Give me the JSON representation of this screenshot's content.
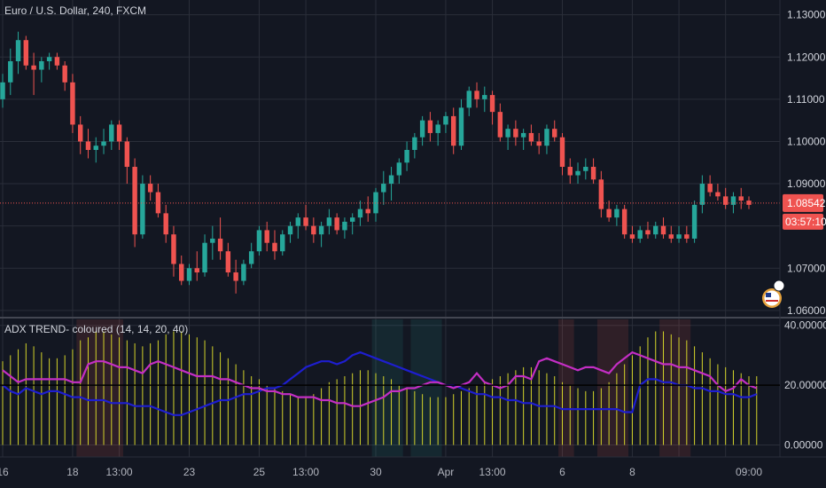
{
  "main_title": "Euro / U.S. Dollar, 240, FXCM",
  "indicator_title": "ADX TREND- coloured (14, 14, 20, 40)",
  "price_axis_labels": [
    "1.13000",
    "1.12000",
    "1.11000",
    "1.10000",
    "1.09000",
    "1.07000",
    "1.06000"
  ],
  "last_price_label": "1.08542",
  "countdown_label": "03:57:10",
  "indicator_axis_labels": [
    "40.00000",
    "20.00000",
    "0.00000"
  ],
  "time_labels": [
    "16",
    "18",
    "13:00",
    "23",
    "25",
    "13:00",
    "30",
    "Apr",
    "13:00",
    "6",
    "8",
    "09:00"
  ],
  "colors": {
    "background": "#131722",
    "grid": "#2a2e39",
    "up": "#26a69a",
    "down": "#ef5350",
    "adx": "#d4d42a",
    "di_plus": "#1e1ed0",
    "di_minus": "#c42ec4",
    "price_badge": "#ef5350"
  },
  "chart_data": [
    {
      "type": "candlestick",
      "title": "Euro / U.S. Dollar, 240, FXCM",
      "ylim": [
        1.0585,
        1.1335
      ],
      "last_price": 1.08542,
      "ohlc": [
        [
          1.11,
          1.116,
          1.108,
          1.114
        ],
        [
          1.114,
          1.122,
          1.111,
          1.119
        ],
        [
          1.119,
          1.126,
          1.116,
          1.124
        ],
        [
          1.124,
          1.125,
          1.117,
          1.118
        ],
        [
          1.118,
          1.121,
          1.111,
          1.117
        ],
        [
          1.117,
          1.12,
          1.114,
          1.119
        ],
        [
          1.119,
          1.121,
          1.117,
          1.12
        ],
        [
          1.12,
          1.121,
          1.117,
          1.118
        ],
        [
          1.118,
          1.119,
          1.112,
          1.114
        ],
        [
          1.114,
          1.116,
          1.102,
          1.104
        ],
        [
          1.104,
          1.106,
          1.097,
          1.1
        ],
        [
          1.1,
          1.103,
          1.096,
          1.098
        ],
        [
          1.098,
          1.101,
          1.095,
          1.099
        ],
        [
          1.099,
          1.103,
          1.097,
          1.1
        ],
        [
          1.1,
          1.105,
          1.098,
          1.104
        ],
        [
          1.104,
          1.105,
          1.098,
          1.1
        ],
        [
          1.1,
          1.101,
          1.09,
          1.094
        ],
        [
          1.094,
          1.096,
          1.075,
          1.078
        ],
        [
          1.078,
          1.092,
          1.077,
          1.09
        ],
        [
          1.09,
          1.092,
          1.086,
          1.088
        ],
        [
          1.088,
          1.09,
          1.082,
          1.083
        ],
        [
          1.083,
          1.085,
          1.076,
          1.078
        ],
        [
          1.078,
          1.08,
          1.068,
          1.071
        ],
        [
          1.071,
          1.073,
          1.066,
          1.067
        ],
        [
          1.067,
          1.071,
          1.066,
          1.07
        ],
        [
          1.07,
          1.074,
          1.067,
          1.069
        ],
        [
          1.069,
          1.078,
          1.068,
          1.076
        ],
        [
          1.076,
          1.08,
          1.072,
          1.077
        ],
        [
          1.077,
          1.082,
          1.072,
          1.074
        ],
        [
          1.074,
          1.076,
          1.068,
          1.069
        ],
        [
          1.069,
          1.072,
          1.064,
          1.067
        ],
        [
          1.067,
          1.072,
          1.066,
          1.071
        ],
        [
          1.071,
          1.076,
          1.07,
          1.074
        ],
        [
          1.074,
          1.08,
          1.073,
          1.079
        ],
        [
          1.079,
          1.081,
          1.074,
          1.076
        ],
        [
          1.076,
          1.079,
          1.072,
          1.074
        ],
        [
          1.074,
          1.079,
          1.073,
          1.078
        ],
        [
          1.078,
          1.081,
          1.076,
          1.08
        ],
        [
          1.08,
          1.083,
          1.077,
          1.082
        ],
        [
          1.082,
          1.085,
          1.079,
          1.08
        ],
        [
          1.08,
          1.082,
          1.076,
          1.078
        ],
        [
          1.078,
          1.081,
          1.075,
          1.08
        ],
        [
          1.08,
          1.084,
          1.078,
          1.082
        ],
        [
          1.082,
          1.083,
          1.078,
          1.079
        ],
        [
          1.079,
          1.082,
          1.077,
          1.081
        ],
        [
          1.081,
          1.083,
          1.078,
          1.082
        ],
        [
          1.082,
          1.086,
          1.08,
          1.084
        ],
        [
          1.084,
          1.087,
          1.081,
          1.083
        ],
        [
          1.083,
          1.089,
          1.081,
          1.088
        ],
        [
          1.088,
          1.093,
          1.085,
          1.09
        ],
        [
          1.09,
          1.094,
          1.086,
          1.092
        ],
        [
          1.092,
          1.096,
          1.09,
          1.095
        ],
        [
          1.095,
          1.1,
          1.093,
          1.098
        ],
        [
          1.098,
          1.102,
          1.096,
          1.101
        ],
        [
          1.101,
          1.106,
          1.099,
          1.105
        ],
        [
          1.105,
          1.107,
          1.1,
          1.102
        ],
        [
          1.102,
          1.105,
          1.099,
          1.104
        ],
        [
          1.104,
          1.107,
          1.102,
          1.106
        ],
        [
          1.106,
          1.108,
          1.097,
          1.099
        ],
        [
          1.099,
          1.11,
          1.098,
          1.108
        ],
        [
          1.108,
          1.113,
          1.106,
          1.112
        ],
        [
          1.112,
          1.114,
          1.108,
          1.11
        ],
        [
          1.11,
          1.113,
          1.107,
          1.111
        ],
        [
          1.111,
          1.112,
          1.104,
          1.107
        ],
        [
          1.107,
          1.109,
          1.1,
          1.101
        ],
        [
          1.101,
          1.104,
          1.098,
          1.103
        ],
        [
          1.103,
          1.105,
          1.099,
          1.101
        ],
        [
          1.101,
          1.103,
          1.098,
          1.102
        ],
        [
          1.102,
          1.104,
          1.099,
          1.1
        ],
        [
          1.1,
          1.102,
          1.097,
          1.099
        ],
        [
          1.099,
          1.104,
          1.097,
          1.103
        ],
        [
          1.103,
          1.105,
          1.1,
          1.101
        ],
        [
          1.101,
          1.102,
          1.092,
          1.094
        ],
        [
          1.094,
          1.096,
          1.09,
          1.092
        ],
        [
          1.092,
          1.095,
          1.09,
          1.093
        ],
        [
          1.093,
          1.096,
          1.091,
          1.094
        ],
        [
          1.094,
          1.096,
          1.09,
          1.091
        ],
        [
          1.091,
          1.093,
          1.082,
          1.084
        ],
        [
          1.084,
          1.086,
          1.081,
          1.082
        ],
        [
          1.082,
          1.085,
          1.08,
          1.084
        ],
        [
          1.084,
          1.085,
          1.077,
          1.078
        ],
        [
          1.078,
          1.08,
          1.076,
          1.077
        ],
        [
          1.077,
          1.08,
          1.076,
          1.079
        ],
        [
          1.079,
          1.081,
          1.077,
          1.078
        ],
        [
          1.078,
          1.081,
          1.077,
          1.08
        ],
        [
          1.08,
          1.082,
          1.077,
          1.078
        ],
        [
          1.078,
          1.08,
          1.076,
          1.077
        ],
        [
          1.077,
          1.08,
          1.076,
          1.078
        ],
        [
          1.078,
          1.08,
          1.076,
          1.077
        ],
        [
          1.077,
          1.086,
          1.076,
          1.085
        ],
        [
          1.085,
          1.092,
          1.083,
          1.09
        ],
        [
          1.09,
          1.092,
          1.087,
          1.088
        ],
        [
          1.088,
          1.09,
          1.086,
          1.087
        ],
        [
          1.087,
          1.089,
          1.084,
          1.085
        ],
        [
          1.085,
          1.088,
          1.083,
          1.087
        ],
        [
          1.087,
          1.089,
          1.084,
          1.086
        ],
        [
          1.086,
          1.087,
          1.084,
          1.085
        ]
      ]
    },
    {
      "type": "line",
      "title": "ADX TREND- coloured (14, 14, 20, 40)",
      "ylim": [
        -4,
        42
      ],
      "series": [
        {
          "values": [
            28,
            30,
            32,
            34,
            33,
            31,
            29,
            29,
            30,
            32,
            35,
            36,
            38,
            38,
            37,
            36,
            35,
            34,
            33,
            34,
            35,
            37,
            38,
            38,
            37,
            36,
            35,
            33,
            31,
            29,
            27,
            25,
            23,
            22,
            20,
            19,
            18,
            17,
            16,
            16,
            17,
            19,
            21,
            22,
            23,
            24,
            25,
            25,
            24,
            23,
            22,
            20,
            19,
            18,
            17,
            16,
            16,
            16,
            17,
            18,
            19,
            20,
            21,
            22,
            23,
            24,
            25,
            26,
            26,
            25,
            24,
            23,
            21,
            20,
            19,
            18,
            18,
            19,
            21,
            24,
            27,
            30,
            33,
            36,
            38,
            38,
            37,
            36,
            35,
            33,
            31,
            29,
            27,
            26,
            25,
            24,
            23,
            23
          ]
        },
        {
          "values": [
            20,
            18,
            17,
            19,
            18,
            17,
            18,
            18,
            17,
            16,
            16,
            15,
            15,
            15,
            14,
            14,
            14,
            13,
            13,
            13,
            12,
            11,
            10,
            10,
            11,
            12,
            13,
            14,
            15,
            15,
            16,
            17,
            17,
            18,
            19,
            19,
            20,
            22,
            24,
            26,
            27,
            28,
            28,
            27,
            28,
            30,
            31,
            30,
            29,
            28,
            27,
            26,
            25,
            24,
            23,
            22,
            21,
            20,
            20,
            19,
            18,
            17,
            17,
            16,
            16,
            15,
            15,
            14,
            14,
            13,
            13,
            13,
            12,
            12,
            12,
            12,
            12,
            12,
            12,
            12,
            11,
            11,
            20,
            22,
            22,
            21,
            21,
            20,
            20,
            19,
            19,
            18,
            18,
            17,
            17,
            16,
            16,
            17
          ]
        },
        {
          "values": [
            25,
            23,
            21,
            22,
            22,
            22,
            22,
            22,
            22,
            21,
            21,
            27,
            28,
            28,
            27,
            26,
            26,
            25,
            24,
            27,
            28,
            27,
            26,
            25,
            24,
            23,
            23,
            23,
            22,
            22,
            21,
            20,
            19,
            19,
            18,
            18,
            17,
            17,
            16,
            16,
            16,
            15,
            15,
            14,
            14,
            13,
            13,
            14,
            15,
            16,
            18,
            18,
            19,
            19,
            20,
            21,
            21,
            20,
            19,
            20,
            21,
            24,
            21,
            20,
            19,
            20,
            23,
            23,
            22,
            28,
            29,
            28,
            27,
            26,
            25,
            26,
            26,
            25,
            24,
            27,
            29,
            31,
            30,
            29,
            28,
            27,
            27,
            26,
            26,
            25,
            24,
            23,
            20,
            18,
            19,
            22,
            20,
            19
          ]
        }
      ]
    }
  ]
}
